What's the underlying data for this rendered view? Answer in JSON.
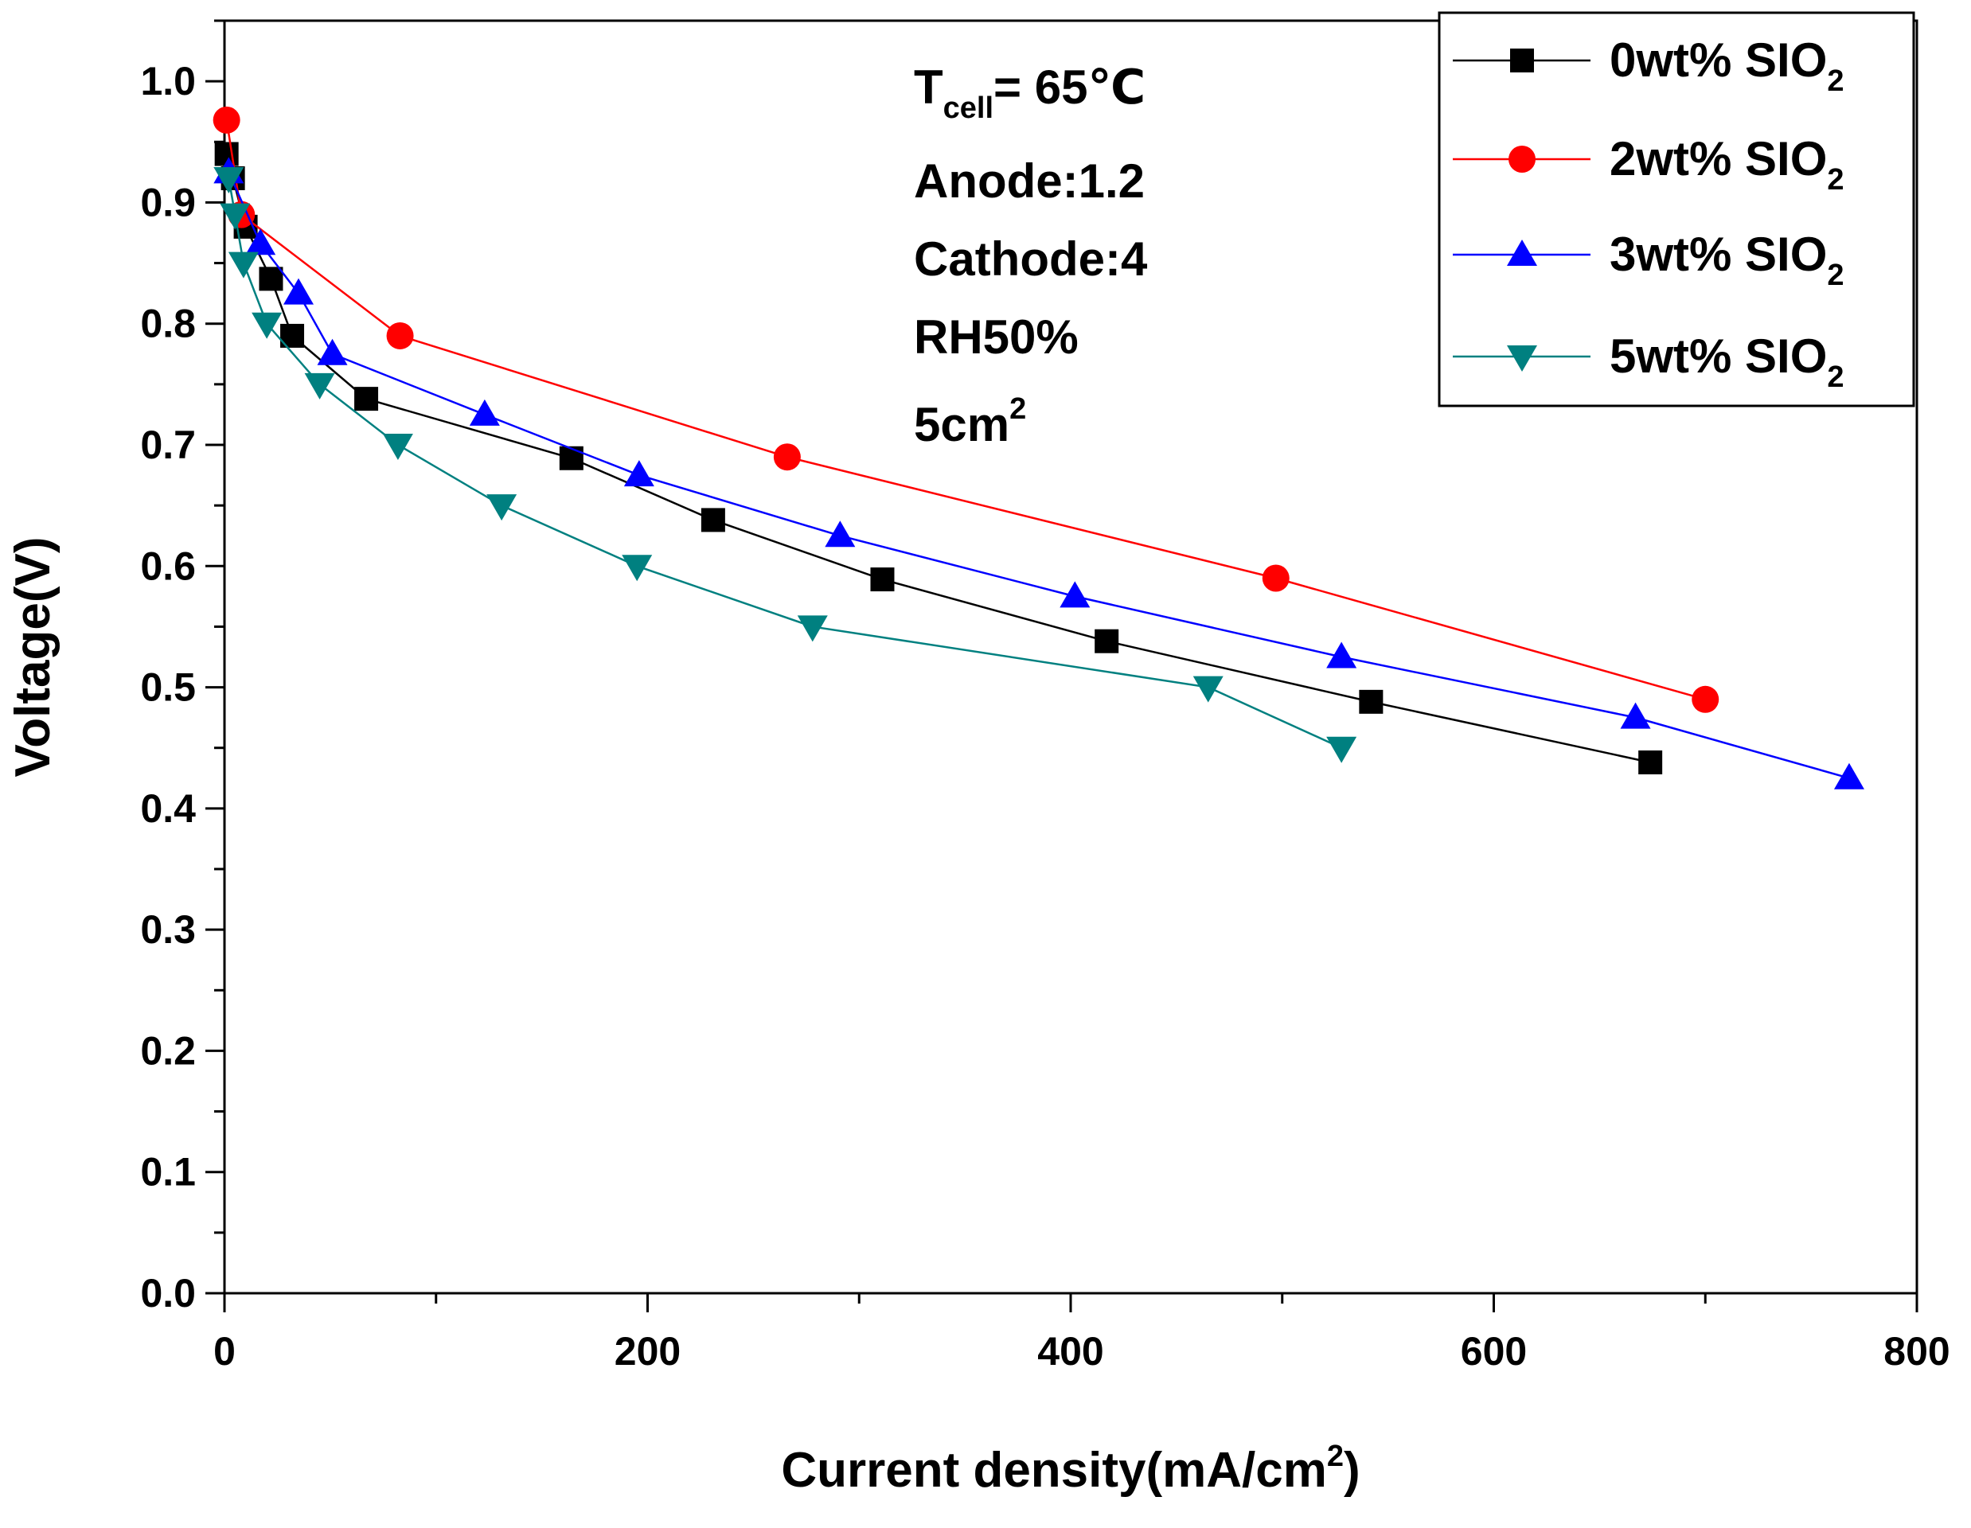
{
  "chart_data": {
    "type": "line",
    "xlabel": "Current density(mA/cm",
    "xlabel_sup": "2",
    "xlabel_tail": ")",
    "ylabel": "Voltage(V)",
    "xlim": [
      0,
      800
    ],
    "ylim": [
      0.0,
      1.05
    ],
    "xticks": [
      "0",
      "200",
      "400",
      "600",
      "800"
    ],
    "yticks": [
      "0.0",
      "0.1",
      "0.2",
      "0.3",
      "0.4",
      "0.5",
      "0.6",
      "0.7",
      "0.8",
      "0.9",
      "1.0"
    ],
    "legend_position": "top-right",
    "grid": false,
    "annotation": {
      "line1_main": "T",
      "line1_sub": "cell",
      "line1_tail": "= 65℃",
      "line2": "Anode:1.2",
      "line3": "Cathode:4",
      "line4": "RH50%",
      "line5_main": "5cm",
      "line5_sup": "2"
    },
    "series": [
      {
        "name": "0wt% SIO",
        "name_sub": "2",
        "color": "#000000",
        "marker": "square",
        "x": [
          1,
          4,
          10,
          22,
          32,
          67,
          164,
          231,
          311,
          417,
          542,
          674
        ],
        "y": [
          0.94,
          0.92,
          0.88,
          0.837,
          0.79,
          0.738,
          0.689,
          0.638,
          0.589,
          0.538,
          0.488,
          0.438
        ]
      },
      {
        "name": "2wt% SIO",
        "name_sub": "2",
        "color": "#ff0000",
        "marker": "circle",
        "x": [
          1,
          8,
          83,
          266,
          497,
          700
        ],
        "y": [
          0.968,
          0.89,
          0.79,
          0.69,
          0.59,
          0.49
        ]
      },
      {
        "name": "3wt% SIO",
        "name_sub": "2",
        "color": "#0000ff",
        "marker": "triangle-up",
        "x": [
          2,
          17,
          35,
          51,
          123,
          196,
          291,
          402,
          528,
          667,
          768
        ],
        "y": [
          0.925,
          0.866,
          0.825,
          0.775,
          0.725,
          0.675,
          0.625,
          0.575,
          0.525,
          0.475,
          0.425
        ]
      },
      {
        "name": "5wt% SIO",
        "name_sub": "2",
        "color": "#008080",
        "marker": "triangle-down",
        "x": [
          2,
          5,
          9,
          20,
          45,
          82,
          131,
          195,
          278,
          465,
          528
        ],
        "y": [
          0.92,
          0.89,
          0.85,
          0.8,
          0.75,
          0.7,
          0.65,
          0.6,
          0.55,
          0.5,
          0.45
        ]
      }
    ]
  }
}
